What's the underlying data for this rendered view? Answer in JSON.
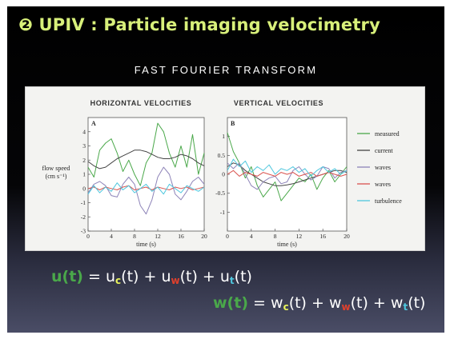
{
  "slide": {
    "title": "❷ UPIV : Particle imaging velocimetry",
    "subtitle": "FAST FOURIER TRANSFORM",
    "equations": {
      "u": {
        "lhs": "u(t)",
        "eq": " = ",
        "t1": "u",
        "s1": "c",
        "r1": "(t) + ",
        "t2": "u",
        "s2": "w",
        "r2": "(t) + ",
        "t3": "u",
        "s3": "t",
        "r3": "(t)"
      },
      "w": {
        "lhs": "w(t)",
        "eq": " = ",
        "t1": "w",
        "s1": "c",
        "r1": "(t) + ",
        "t2": "w",
        "s2": "w",
        "r2": "(t) + ",
        "t3": "w",
        "s3": "t",
        "r3": "(t)"
      }
    },
    "colors": {
      "title": "#d8f07a",
      "measured": "#4aa84a",
      "current": "#444444",
      "waves_purple": "#8d83b8",
      "waves_red": "#d9534f",
      "turbulence": "#4fc7de"
    }
  },
  "chart_data": [
    {
      "type": "line",
      "panel": "A",
      "title": "HORIZONTAL VELOCITIES",
      "xlabel": "time (s)",
      "ylabel": "flow speed (cm s⁻¹)",
      "xlim": [
        0,
        20
      ],
      "ylim": [
        -3,
        5
      ],
      "xticks": [
        0,
        4,
        8,
        12,
        16,
        20
      ],
      "yticks": [
        -3,
        -2,
        -1,
        0,
        1,
        2,
        3,
        4
      ],
      "x": [
        0,
        1,
        2,
        3,
        4,
        5,
        6,
        7,
        8,
        9,
        10,
        11,
        12,
        13,
        14,
        15,
        16,
        17,
        18,
        19,
        20
      ],
      "series": [
        {
          "name": "measured",
          "color": "#4aa84a",
          "values": [
            1.5,
            0.8,
            2.7,
            3.2,
            3.5,
            2.5,
            1.2,
            2.0,
            1.0,
            0.2,
            1.8,
            2.5,
            4.6,
            4.0,
            2.5,
            1.5,
            3.0,
            1.5,
            3.8,
            1.0,
            2.5
          ]
        },
        {
          "name": "current",
          "color": "#444444",
          "values": [
            1.9,
            1.6,
            1.4,
            1.5,
            1.8,
            2.1,
            2.3,
            2.5,
            2.7,
            2.7,
            2.6,
            2.4,
            2.2,
            2.1,
            2.1,
            2.2,
            2.4,
            2.3,
            2.1,
            1.8,
            1.6
          ]
        },
        {
          "name": "waves",
          "color": "#8d83b8",
          "values": [
            -0.3,
            0.3,
            0.5,
            0.2,
            -0.5,
            -0.6,
            0.3,
            0.8,
            0.3,
            -1.2,
            -1.8,
            -0.8,
            0.8,
            1.5,
            1.0,
            -0.4,
            -0.8,
            -0.2,
            0.5,
            0.8,
            0.3
          ]
        },
        {
          "name": "waves",
          "color": "#d9534f",
          "values": [
            0.0,
            0.1,
            -0.1,
            0.1,
            0.0,
            -0.1,
            0.1,
            0.2,
            -0.1,
            0.0,
            0.1,
            -0.1,
            0.1,
            0.0,
            -0.1,
            0.1,
            0.0,
            0.1,
            -0.1,
            0.0,
            0.1
          ]
        },
        {
          "name": "turbulence",
          "color": "#4fc7de",
          "values": [
            -0.4,
            0.2,
            -0.3,
            0.1,
            -0.2,
            0.4,
            -0.1,
            0.2,
            -0.3,
            0.0,
            0.3,
            -0.2,
            0.1,
            -0.4,
            0.3,
            0.0,
            -0.3,
            0.2,
            0.0,
            -0.2,
            0.1
          ]
        }
      ]
    },
    {
      "type": "line",
      "panel": "B",
      "title": "VERTICAL VELOCITIES",
      "xlabel": "time (s)",
      "xlim": [
        0,
        20
      ],
      "ylim": [
        -1.5,
        1.5
      ],
      "xticks": [
        0,
        4,
        8,
        12,
        16,
        20
      ],
      "yticks": [
        -1,
        -0.5,
        0,
        0.5,
        1
      ],
      "yticklabels": [
        "-1",
        "-0.5",
        "0",
        "0.5",
        "1"
      ],
      "x": [
        0,
        1,
        2,
        3,
        4,
        5,
        6,
        7,
        8,
        9,
        10,
        11,
        12,
        13,
        14,
        15,
        16,
        17,
        18,
        19,
        20
      ],
      "series": [
        {
          "name": "measured",
          "color": "#4aa84a",
          "values": [
            1.1,
            0.6,
            0.3,
            -0.1,
            0.2,
            -0.3,
            -0.6,
            -0.4,
            -0.2,
            -0.7,
            -0.5,
            -0.3,
            -0.1,
            -0.2,
            0.0,
            -0.4,
            -0.1,
            0.1,
            -0.2,
            0.0,
            0.2
          ]
        },
        {
          "name": "current",
          "color": "#444444",
          "values": [
            0.2,
            0.3,
            0.25,
            0.1,
            0.0,
            -0.1,
            -0.2,
            -0.25,
            -0.3,
            -0.3,
            -0.28,
            -0.25,
            -0.2,
            -0.15,
            -0.1,
            -0.05,
            0.0,
            0.05,
            0.1,
            0.1,
            0.05
          ]
        },
        {
          "name": "waves",
          "color": "#8d83b8",
          "values": [
            0.3,
            0.15,
            0.3,
            0.0,
            -0.3,
            -0.4,
            -0.2,
            -0.1,
            -0.05,
            -0.25,
            -0.2,
            0.1,
            0.2,
            0.0,
            -0.15,
            -0.05,
            0.2,
            0.15,
            -0.1,
            0.05,
            0.1
          ]
        },
        {
          "name": "waves",
          "color": "#d9534f",
          "values": [
            0.0,
            0.1,
            -0.05,
            0.05,
            0.0,
            -0.05,
            0.05,
            0.0,
            -0.05,
            0.05,
            0.0,
            0.05,
            -0.05,
            0.0,
            0.05,
            -0.05,
            0.0,
            0.05,
            0.0,
            -0.05,
            0.0
          ]
        },
        {
          "name": "turbulence",
          "color": "#4fc7de",
          "values": [
            0.1,
            0.4,
            0.2,
            0.35,
            0.05,
            0.2,
            0.1,
            0.25,
            0.0,
            0.15,
            0.1,
            0.2,
            0.05,
            0.15,
            -0.05,
            0.1,
            0.2,
            0.05,
            0.15,
            0.0,
            0.1
          ]
        }
      ]
    }
  ]
}
